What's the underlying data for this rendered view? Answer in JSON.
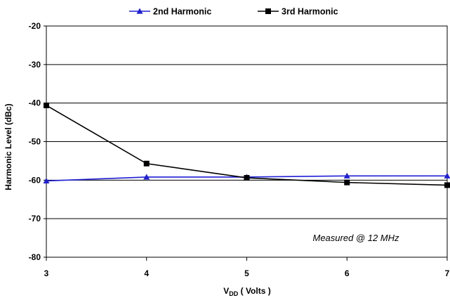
{
  "chart_data": {
    "type": "line",
    "title": "",
    "xlabel": {
      "main": "V",
      "subscript": "DD",
      "suffix": " ( Volts )"
    },
    "ylabel": "Harmonic Level (dBc)",
    "x": [
      3,
      4,
      5,
      6,
      7
    ],
    "x_ticks": [
      "3",
      "4",
      "5",
      "6",
      "7"
    ],
    "xlim": [
      3,
      7
    ],
    "ylim": [
      -80,
      -20
    ],
    "y_ticks": [
      "-20",
      "-30",
      "-40",
      "-50",
      "-60",
      "-70",
      "-80"
    ],
    "y_tick_values": [
      -20,
      -30,
      -40,
      -50,
      -60,
      -70,
      -80
    ],
    "grid": "horizontal",
    "legend_position": "top-center",
    "series": [
      {
        "name": "2nd Harmonic",
        "color": "#1f1fd6",
        "marker": "triangle",
        "values": [
          -60.2,
          -59.2,
          -59.2,
          -58.9,
          -58.9
        ]
      },
      {
        "name": "3rd Harmonic",
        "color": "#000000",
        "marker": "square",
        "values": [
          -40.6,
          -55.7,
          -59.4,
          -60.6,
          -61.3
        ]
      }
    ],
    "annotation": "Measured @ 12 MHz"
  }
}
